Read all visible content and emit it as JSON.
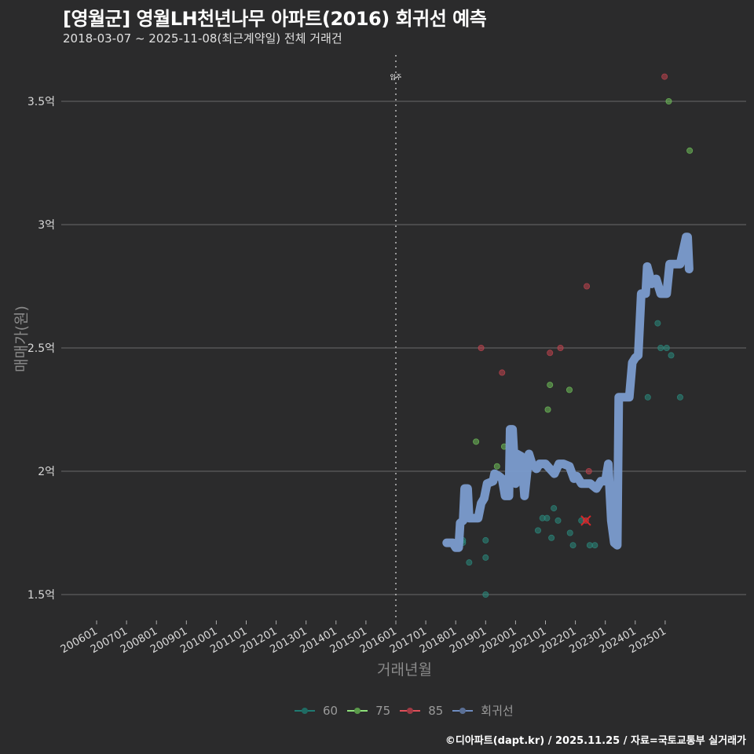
{
  "header": {
    "title": "[영월군] 영월LH천년나무 아파트(2016) 회귀선 예측",
    "subtitle": "2018-03-07 ~ 2025-11-08(최근계약일) 전체 거래건"
  },
  "axes": {
    "ylabel": "매매가(원)",
    "xlabel": "거래년월",
    "annotation": "입주"
  },
  "legend": {
    "items": [
      {
        "label": "60",
        "color": "#1f7a72"
      },
      {
        "label": "75",
        "color": "#6fbf5a"
      },
      {
        "label": "85",
        "color": "#c0444f"
      },
      {
        "label": "회귀선",
        "color": "#7b9ccf"
      }
    ]
  },
  "footer": {
    "credit": "©디아파트(dapt.kr) / 2025.11.25 / 자료=국토교통부 실거래가"
  },
  "colors": {
    "background": "#2b2b2c",
    "gridline": "#6a6a6a",
    "regression": "#7b9ccf",
    "s60": "#2a8a7e",
    "s75": "#6fbf5a",
    "s85": "#c0444f",
    "marker_x": "#d62728"
  },
  "chart_data": {
    "type": "scatter",
    "title": "[영월군] 영월LH천년나무 아파트(2016) 회귀선 예측",
    "subtitle": "2018-03-07 ~ 2025-11-08(최근계약일) 전체 거래건",
    "xlabel": "거래년월",
    "ylabel": "매매가(원)",
    "x_ticks": [
      "200601",
      "200701",
      "200801",
      "200901",
      "201001",
      "201101",
      "201201",
      "201301",
      "201401",
      "201501",
      "201601",
      "201701",
      "201801",
      "201901",
      "202001",
      "202101",
      "202201",
      "202301",
      "202401",
      "202501"
    ],
    "y_ticks": [
      "1.5억",
      "2억",
      "2.5억",
      "3억",
      "3.5억"
    ],
    "y_tick_values": [
      1.5,
      2.0,
      2.5,
      3.0,
      3.5
    ],
    "ylim": [
      1.41,
      3.68
    ],
    "xlim": [
      2005.0,
      2026.2
    ],
    "grid": "horizontal",
    "legend_position": "bottom",
    "vline": {
      "x": 2016.0,
      "label": "입주",
      "style": "dotted"
    },
    "series": [
      {
        "name": "60",
        "points": [
          [
            2018.24,
            1.72
          ],
          [
            2018.24,
            1.71
          ],
          [
            2018.45,
            1.63
          ],
          [
            2019.0,
            1.72
          ],
          [
            2019.0,
            1.65
          ],
          [
            2019.0,
            1.5
          ],
          [
            2020.75,
            1.76
          ],
          [
            2020.9,
            1.81
          ],
          [
            2021.05,
            1.81
          ],
          [
            2021.2,
            1.73
          ],
          [
            2021.28,
            1.85
          ],
          [
            2021.42,
            1.8
          ],
          [
            2021.82,
            1.75
          ],
          [
            2021.92,
            1.7
          ],
          [
            2022.2,
            1.8
          ],
          [
            2022.48,
            1.7
          ],
          [
            2022.65,
            1.7
          ],
          [
            2024.42,
            2.3
          ],
          [
            2024.75,
            2.6
          ],
          [
            2024.85,
            2.5
          ],
          [
            2025.05,
            2.5
          ],
          [
            2025.2,
            2.47
          ],
          [
            2025.5,
            2.3
          ]
        ]
      },
      {
        "name": "75",
        "points": [
          [
            2018.68,
            2.12
          ],
          [
            2019.38,
            2.02
          ],
          [
            2019.62,
            2.1
          ],
          [
            2021.08,
            2.25
          ],
          [
            2021.15,
            2.35
          ],
          [
            2021.8,
            2.33
          ],
          [
            2025.12,
            3.5
          ],
          [
            2025.82,
            3.3
          ]
        ]
      },
      {
        "name": "85",
        "points": [
          [
            2018.85,
            2.5
          ],
          [
            2019.55,
            2.4
          ],
          [
            2021.15,
            2.48
          ],
          [
            2021.5,
            2.5
          ],
          [
            2022.35,
            1.8
          ],
          [
            2022.38,
            2.75
          ],
          [
            2022.45,
            2.0
          ],
          [
            2024.98,
            3.6
          ]
        ]
      },
      {
        "name": "회귀선",
        "points": [
          [
            2017.7,
            1.71
          ],
          [
            2017.9,
            1.71
          ],
          [
            2018.0,
            1.69
          ],
          [
            2018.1,
            1.69
          ],
          [
            2018.15,
            1.79
          ],
          [
            2018.25,
            1.8
          ],
          [
            2018.3,
            1.93
          ],
          [
            2018.4,
            1.93
          ],
          [
            2018.45,
            1.81
          ],
          [
            2018.75,
            1.81
          ],
          [
            2018.85,
            1.87
          ],
          [
            2018.95,
            1.89
          ],
          [
            2019.05,
            1.95
          ],
          [
            2019.25,
            1.96
          ],
          [
            2019.3,
            1.99
          ],
          [
            2019.45,
            1.98
          ],
          [
            2019.55,
            1.97
          ],
          [
            2019.65,
            1.9
          ],
          [
            2019.78,
            1.9
          ],
          [
            2019.82,
            2.17
          ],
          [
            2019.9,
            2.17
          ],
          [
            2020.0,
            1.95
          ],
          [
            2020.05,
            2.07
          ],
          [
            2020.2,
            2.06
          ],
          [
            2020.3,
            1.9
          ],
          [
            2020.45,
            2.07
          ],
          [
            2020.55,
            2.03
          ],
          [
            2020.7,
            2.01
          ],
          [
            2020.8,
            2.03
          ],
          [
            2021.0,
            2.03
          ],
          [
            2021.15,
            2.01
          ],
          [
            2021.3,
            1.99
          ],
          [
            2021.45,
            2.03
          ],
          [
            2021.6,
            2.03
          ],
          [
            2021.8,
            2.02
          ],
          [
            2021.95,
            1.97
          ],
          [
            2022.05,
            1.98
          ],
          [
            2022.2,
            1.95
          ],
          [
            2022.5,
            1.95
          ],
          [
            2022.7,
            1.93
          ],
          [
            2022.85,
            1.96
          ],
          [
            2023.0,
            1.96
          ],
          [
            2023.1,
            2.03
          ],
          [
            2023.2,
            1.8
          ],
          [
            2023.3,
            1.71
          ],
          [
            2023.4,
            1.7
          ],
          [
            2023.45,
            2.3
          ],
          [
            2023.8,
            2.3
          ],
          [
            2023.9,
            2.44
          ],
          [
            2024.0,
            2.46
          ],
          [
            2024.1,
            2.47
          ],
          [
            2024.2,
            2.72
          ],
          [
            2024.35,
            2.72
          ],
          [
            2024.4,
            2.83
          ],
          [
            2024.55,
            2.76
          ],
          [
            2024.7,
            2.78
          ],
          [
            2024.85,
            2.72
          ],
          [
            2025.05,
            2.72
          ],
          [
            2025.15,
            2.84
          ],
          [
            2025.5,
            2.84
          ],
          [
            2025.7,
            2.95
          ],
          [
            2025.75,
            2.95
          ],
          [
            2025.8,
            2.82
          ]
        ]
      }
    ],
    "highlight_marker": {
      "shape": "x",
      "x": 2022.35,
      "y": 1.8,
      "color": "#d62728"
    }
  }
}
